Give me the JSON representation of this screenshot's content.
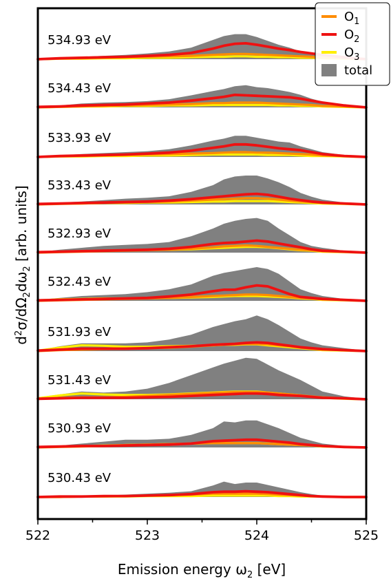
{
  "chart_data": {
    "type": "area",
    "xlabel": "Emission energy ω₂ [eV]",
    "ylabel": "d²σ/dΩ₂dω₂ [arb. units]",
    "xlim": [
      522,
      525
    ],
    "x_ticks": [
      "522",
      "523",
      "524",
      "525"
    ],
    "colors": {
      "O1": "#ff8c00",
      "O2": "#ee1111",
      "O3": "#ffee00",
      "total": "#808080"
    },
    "legend": {
      "placement": "top-right",
      "entries": [
        {
          "key": "O1",
          "base": "O",
          "sub": "1"
        },
        {
          "key": "O2",
          "base": "O",
          "sub": "2"
        },
        {
          "key": "O3",
          "base": "O",
          "sub": "3"
        },
        {
          "key": "total",
          "base": "total",
          "sub": ""
        }
      ]
    },
    "x": [
      522.0,
      522.2,
      522.4,
      522.6,
      522.8,
      523.0,
      523.2,
      523.4,
      523.6,
      523.7,
      523.8,
      523.9,
      524.0,
      524.1,
      524.2,
      524.3,
      524.4,
      524.5,
      524.6,
      524.8,
      525.0
    ],
    "panels": [
      {
        "label": "534.93 eV",
        "total": [
          0,
          0.03,
          0.05,
          0.07,
          0.09,
          0.12,
          0.16,
          0.24,
          0.4,
          0.48,
          0.52,
          0.52,
          0.46,
          0.38,
          0.3,
          0.24,
          0.16,
          0.12,
          0.08,
          0.04,
          0
        ],
        "O1": [
          0,
          0.01,
          0.02,
          0.03,
          0.04,
          0.05,
          0.06,
          0.07,
          0.09,
          0.1,
          0.11,
          0.11,
          0.1,
          0.09,
          0.08,
          0.07,
          0.06,
          0.05,
          0.03,
          0.02,
          0
        ],
        "O2": [
          0,
          0.02,
          0.03,
          0.04,
          0.05,
          0.07,
          0.09,
          0.13,
          0.22,
          0.28,
          0.32,
          0.33,
          0.3,
          0.26,
          0.22,
          0.19,
          0.15,
          0.12,
          0.09,
          0.04,
          0
        ],
        "O3": [
          0,
          0.01,
          0.01,
          0.02,
          0.02,
          0.03,
          0.03,
          0.04,
          0.05,
          0.05,
          0.06,
          0.06,
          0.05,
          0.05,
          0.04,
          0.04,
          0.03,
          0.03,
          0.02,
          0.01,
          0
        ]
      },
      {
        "label": "534.43 eV",
        "total": [
          0.01,
          0.04,
          0.08,
          0.1,
          0.11,
          0.13,
          0.17,
          0.25,
          0.34,
          0.38,
          0.44,
          0.46,
          0.42,
          0.4,
          0.36,
          0.32,
          0.26,
          0.18,
          0.12,
          0.05,
          0.01
        ],
        "O1": [
          0,
          0.01,
          0.02,
          0.03,
          0.04,
          0.05,
          0.06,
          0.07,
          0.09,
          0.09,
          0.1,
          0.1,
          0.1,
          0.09,
          0.08,
          0.07,
          0.06,
          0.05,
          0.03,
          0.02,
          0
        ],
        "O2": [
          0.01,
          0.02,
          0.04,
          0.05,
          0.06,
          0.08,
          0.1,
          0.14,
          0.19,
          0.22,
          0.26,
          0.25,
          0.24,
          0.23,
          0.22,
          0.21,
          0.18,
          0.14,
          0.1,
          0.04,
          0
        ],
        "O3": [
          0,
          0.01,
          0.02,
          0.02,
          0.03,
          0.03,
          0.04,
          0.04,
          0.05,
          0.05,
          0.05,
          0.05,
          0.05,
          0.05,
          0.04,
          0.04,
          0.03,
          0.03,
          0.02,
          0.01,
          0
        ]
      },
      {
        "label": "533.93 eV",
        "total": [
          0.01,
          0.03,
          0.06,
          0.08,
          0.1,
          0.12,
          0.16,
          0.24,
          0.34,
          0.38,
          0.44,
          0.44,
          0.4,
          0.36,
          0.32,
          0.3,
          0.22,
          0.16,
          0.1,
          0.04,
          0
        ],
        "O1": [
          0,
          0.01,
          0.02,
          0.03,
          0.04,
          0.05,
          0.06,
          0.07,
          0.08,
          0.09,
          0.1,
          0.1,
          0.09,
          0.09,
          0.08,
          0.07,
          0.06,
          0.05,
          0.03,
          0.02,
          0
        ],
        "O2": [
          0,
          0.02,
          0.03,
          0.04,
          0.05,
          0.07,
          0.09,
          0.13,
          0.19,
          0.22,
          0.26,
          0.26,
          0.24,
          0.21,
          0.18,
          0.16,
          0.14,
          0.1,
          0.06,
          0.02,
          0
        ],
        "O3": [
          0,
          0.01,
          0.01,
          0.02,
          0.02,
          0.03,
          0.03,
          0.04,
          0.05,
          0.05,
          0.05,
          0.05,
          0.05,
          0.04,
          0.04,
          0.04,
          0.03,
          0.02,
          0.02,
          0.01,
          0
        ]
      },
      {
        "label": "533.43 eV",
        "total": [
          0.02,
          0.04,
          0.06,
          0.09,
          0.12,
          0.14,
          0.17,
          0.26,
          0.4,
          0.52,
          0.58,
          0.6,
          0.6,
          0.54,
          0.46,
          0.36,
          0.24,
          0.16,
          0.1,
          0.04,
          0
        ],
        "O1": [
          0,
          0.01,
          0.02,
          0.03,
          0.04,
          0.05,
          0.06,
          0.08,
          0.1,
          0.11,
          0.12,
          0.13,
          0.13,
          0.12,
          0.1,
          0.08,
          0.06,
          0.05,
          0.03,
          0.02,
          0
        ],
        "O2": [
          0.01,
          0.02,
          0.03,
          0.04,
          0.05,
          0.06,
          0.08,
          0.11,
          0.15,
          0.17,
          0.19,
          0.21,
          0.22,
          0.2,
          0.16,
          0.12,
          0.09,
          0.06,
          0.04,
          0.02,
          0
        ],
        "O3": [
          0.01,
          0.02,
          0.02,
          0.03,
          0.03,
          0.04,
          0.04,
          0.05,
          0.06,
          0.06,
          0.07,
          0.07,
          0.07,
          0.07,
          0.06,
          0.05,
          0.04,
          0.03,
          0.02,
          0.01,
          0
        ]
      },
      {
        "label": "532.93 eV",
        "total": [
          0.01,
          0.06,
          0.1,
          0.14,
          0.16,
          0.18,
          0.22,
          0.34,
          0.5,
          0.6,
          0.66,
          0.7,
          0.72,
          0.66,
          0.5,
          0.36,
          0.22,
          0.14,
          0.1,
          0.04,
          0
        ],
        "O1": [
          0,
          0.01,
          0.02,
          0.03,
          0.04,
          0.05,
          0.06,
          0.08,
          0.11,
          0.13,
          0.14,
          0.15,
          0.14,
          0.12,
          0.1,
          0.08,
          0.06,
          0.05,
          0.03,
          0.02,
          0
        ],
        "O2": [
          0.01,
          0.02,
          0.03,
          0.04,
          0.05,
          0.06,
          0.08,
          0.12,
          0.18,
          0.2,
          0.21,
          0.23,
          0.25,
          0.23,
          0.19,
          0.15,
          0.11,
          0.07,
          0.04,
          0.02,
          0
        ],
        "O3": [
          0,
          0.02,
          0.03,
          0.04,
          0.05,
          0.06,
          0.06,
          0.07,
          0.09,
          0.1,
          0.11,
          0.12,
          0.12,
          0.11,
          0.09,
          0.07,
          0.05,
          0.04,
          0.02,
          0.01,
          0
        ]
      },
      {
        "label": "532.43 eV",
        "total": [
          0.02,
          0.06,
          0.1,
          0.12,
          0.14,
          0.18,
          0.24,
          0.34,
          0.52,
          0.58,
          0.62,
          0.66,
          0.7,
          0.66,
          0.56,
          0.4,
          0.24,
          0.16,
          0.1,
          0.04,
          0
        ],
        "O1": [
          0,
          0.01,
          0.02,
          0.03,
          0.04,
          0.05,
          0.06,
          0.08,
          0.1,
          0.11,
          0.12,
          0.13,
          0.13,
          0.12,
          0.1,
          0.08,
          0.06,
          0.05,
          0.03,
          0.02,
          0
        ],
        "O2": [
          0.01,
          0.02,
          0.03,
          0.04,
          0.05,
          0.06,
          0.09,
          0.13,
          0.2,
          0.23,
          0.23,
          0.28,
          0.32,
          0.3,
          0.22,
          0.14,
          0.08,
          0.06,
          0.04,
          0.02,
          0
        ],
        "O3": [
          0.01,
          0.03,
          0.04,
          0.05,
          0.05,
          0.06,
          0.06,
          0.07,
          0.08,
          0.09,
          0.1,
          0.1,
          0.1,
          0.09,
          0.08,
          0.07,
          0.05,
          0.04,
          0.02,
          0.01,
          0
        ]
      },
      {
        "label": "531.93 eV",
        "total": [
          0.02,
          0.1,
          0.16,
          0.16,
          0.16,
          0.18,
          0.24,
          0.34,
          0.5,
          0.56,
          0.62,
          0.66,
          0.74,
          0.66,
          0.54,
          0.4,
          0.26,
          0.18,
          0.12,
          0.06,
          0.01
        ],
        "O1": [
          0,
          0.02,
          0.03,
          0.04,
          0.05,
          0.06,
          0.07,
          0.09,
          0.12,
          0.13,
          0.14,
          0.15,
          0.15,
          0.14,
          0.12,
          0.1,
          0.07,
          0.05,
          0.03,
          0.02,
          0
        ],
        "O2": [
          0.01,
          0.03,
          0.05,
          0.05,
          0.05,
          0.06,
          0.08,
          0.1,
          0.13,
          0.14,
          0.15,
          0.17,
          0.18,
          0.17,
          0.14,
          0.11,
          0.08,
          0.06,
          0.04,
          0.02,
          0
        ],
        "O3": [
          0.01,
          0.07,
          0.12,
          0.11,
          0.09,
          0.09,
          0.1,
          0.11,
          0.12,
          0.13,
          0.13,
          0.14,
          0.14,
          0.12,
          0.1,
          0.08,
          0.06,
          0.04,
          0.02,
          0.01,
          0
        ]
      },
      {
        "label": "531.43 eV",
        "total": [
          0.04,
          0.1,
          0.16,
          0.14,
          0.16,
          0.22,
          0.34,
          0.5,
          0.66,
          0.74,
          0.8,
          0.86,
          0.84,
          0.72,
          0.6,
          0.5,
          0.4,
          0.28,
          0.16,
          0.06,
          0.01
        ],
        "O1": [
          0.01,
          0.03,
          0.04,
          0.04,
          0.05,
          0.07,
          0.09,
          0.11,
          0.13,
          0.14,
          0.15,
          0.15,
          0.15,
          0.14,
          0.12,
          0.1,
          0.08,
          0.06,
          0.04,
          0.02,
          0
        ],
        "O2": [
          0.01,
          0.02,
          0.03,
          0.03,
          0.03,
          0.04,
          0.05,
          0.07,
          0.09,
          0.1,
          0.11,
          0.12,
          0.12,
          0.11,
          0.09,
          0.08,
          0.07,
          0.05,
          0.03,
          0.02,
          0
        ],
        "O3": [
          0.02,
          0.08,
          0.12,
          0.1,
          0.09,
          0.09,
          0.1,
          0.12,
          0.14,
          0.15,
          0.16,
          0.16,
          0.16,
          0.14,
          0.12,
          0.1,
          0.08,
          0.05,
          0.03,
          0.01,
          0
        ]
      },
      {
        "label": "530.93 eV",
        "total": [
          0.01,
          0.04,
          0.08,
          0.12,
          0.16,
          0.16,
          0.18,
          0.26,
          0.4,
          0.54,
          0.52,
          0.56,
          0.56,
          0.48,
          0.4,
          0.3,
          0.2,
          0.14,
          0.08,
          0.03,
          0
        ],
        "O1": [
          0,
          0.01,
          0.02,
          0.03,
          0.05,
          0.06,
          0.07,
          0.08,
          0.09,
          0.09,
          0.09,
          0.09,
          0.09,
          0.08,
          0.07,
          0.06,
          0.05,
          0.04,
          0.03,
          0.01,
          0
        ],
        "O2": [
          0.01,
          0.02,
          0.03,
          0.03,
          0.04,
          0.05,
          0.06,
          0.08,
          0.13,
          0.14,
          0.15,
          0.16,
          0.16,
          0.14,
          0.12,
          0.1,
          0.07,
          0.05,
          0.03,
          0.01,
          0
        ],
        "O3": [
          0,
          0.02,
          0.03,
          0.04,
          0.05,
          0.06,
          0.07,
          0.08,
          0.09,
          0.09,
          0.09,
          0.09,
          0.09,
          0.08,
          0.07,
          0.06,
          0.05,
          0.04,
          0.02,
          0.01,
          0
        ]
      },
      {
        "label": "530.43 eV",
        "total": [
          0,
          0.01,
          0.02,
          0.03,
          0.05,
          0.07,
          0.09,
          0.12,
          0.24,
          0.32,
          0.27,
          0.3,
          0.3,
          0.25,
          0.2,
          0.15,
          0.1,
          0.06,
          0.03,
          0.01,
          0
        ],
        "O1": [
          0,
          0,
          0.01,
          0.01,
          0.02,
          0.03,
          0.04,
          0.05,
          0.07,
          0.07,
          0.07,
          0.07,
          0.07,
          0.06,
          0.05,
          0.04,
          0.03,
          0.02,
          0.01,
          0,
          0
        ],
        "O2": [
          0,
          0.01,
          0.01,
          0.02,
          0.02,
          0.03,
          0.04,
          0.06,
          0.1,
          0.11,
          0.11,
          0.12,
          0.11,
          0.1,
          0.08,
          0.06,
          0.04,
          0.02,
          0.01,
          0,
          0
        ],
        "O3": [
          0,
          0,
          0.01,
          0.01,
          0.01,
          0.02,
          0.02,
          0.02,
          0.03,
          0.03,
          0.03,
          0.03,
          0.03,
          0.03,
          0.02,
          0.02,
          0.01,
          0.01,
          0.01,
          0,
          0
        ]
      }
    ]
  }
}
